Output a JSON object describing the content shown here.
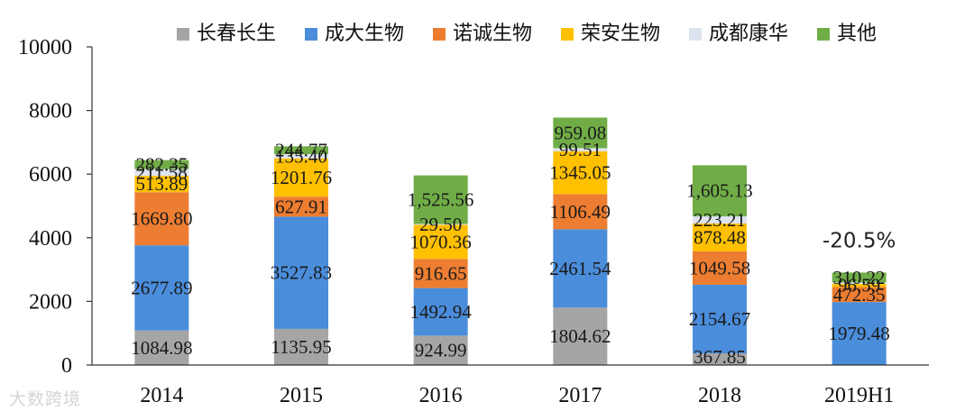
{
  "chart_data": {
    "type": "bar",
    "stacked": true,
    "categories": [
      "2014",
      "2015",
      "2016",
      "2017",
      "2018",
      "2019H1"
    ],
    "ylim": [
      0,
      10000
    ],
    "yticks": [
      0,
      2000,
      4000,
      6000,
      8000,
      10000
    ],
    "grid": false,
    "legend_position": "top",
    "series": [
      {
        "name": "长春长生",
        "color": "#a5a5a5",
        "values": [
          1084.98,
          1135.95,
          924.99,
          1804.62,
          367.85,
          0
        ],
        "labels": [
          "1084.98",
          "1135.95",
          "924.99",
          "1804.62",
          "367.85",
          ""
        ]
      },
      {
        "name": "成大生物",
        "color": "#4a8ddb",
        "values": [
          2677.89,
          3527.83,
          1492.94,
          2461.54,
          2154.67,
          1979.48
        ],
        "labels": [
          "2677.89",
          "3527.83",
          "1492.94",
          "2461.54",
          "2154.67",
          "1979.48"
        ]
      },
      {
        "name": "诺诚生物",
        "color": "#ed7d31",
        "values": [
          1669.8,
          627.91,
          916.65,
          1106.49,
          1049.58,
          472.35
        ],
        "labels": [
          "1669.80",
          "627.91",
          "916.65",
          "1106.49",
          "1049.58",
          "472.35"
        ]
      },
      {
        "name": "荣安生物",
        "color": "#ffc000",
        "values": [
          513.89,
          1201.76,
          1070.36,
          1345.05,
          878.48,
          96.59
        ],
        "labels": [
          "513.89",
          "1201.76",
          "1070.36",
          "1345.05",
          "878.48",
          "96.59"
        ]
      },
      {
        "name": "成都康华",
        "color": "#dde3ef",
        "values": [
          211.58,
          135.4,
          29.5,
          99.51,
          223.21,
          48.0
        ],
        "labels": [
          "211.58",
          "135.40",
          "29.50",
          "99.51",
          "223.21",
          ""
        ]
      },
      {
        "name": "其他",
        "color": "#70ad47",
        "values": [
          282.35,
          244.77,
          1525.56,
          959.08,
          1605.13,
          310.22
        ],
        "labels": [
          "282.35",
          "244.77",
          "1,525.56",
          "959.08",
          "1,605.13",
          "310.22"
        ]
      }
    ],
    "annotations": [
      {
        "category": "2019H1",
        "text": "-20.5%"
      }
    ]
  },
  "watermark": "大数跨境"
}
